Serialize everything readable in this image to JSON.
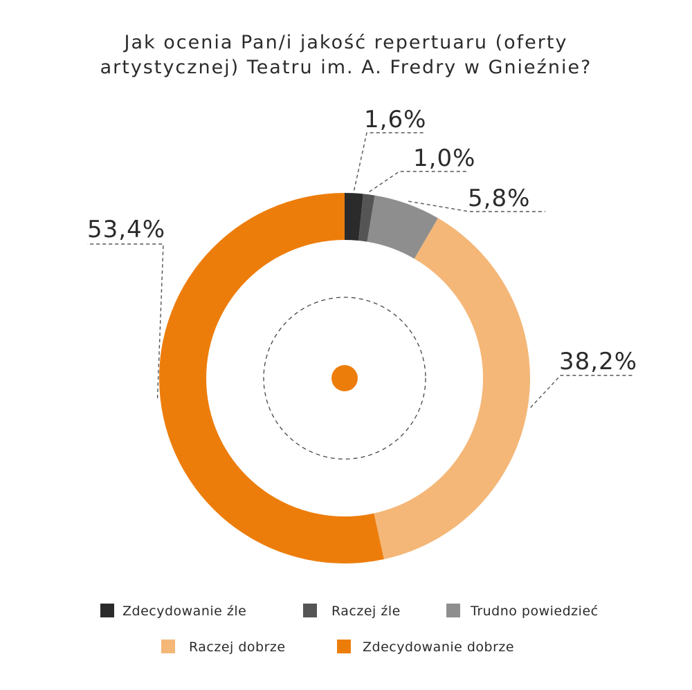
{
  "chart_data": {
    "type": "pie",
    "variant": "donut",
    "title_lines": [
      "Jak ocenia Pan/i jakość repertuaru (oferty",
      "artystycznej) Teatru im. A. Fredry w Gnieźnie?"
    ],
    "slices": [
      {
        "name": "Zdecydowanie źle",
        "value": 1.6,
        "label": "1,6%",
        "color": "#2b2b2b"
      },
      {
        "name": "Raczej źle",
        "value": 1.0,
        "label": "1,0%",
        "color": "#555555"
      },
      {
        "name": "Trudno powiedzieć",
        "value": 5.8,
        "label": "5,8%",
        "color": "#8e8e8e"
      },
      {
        "name": "Raczej dobrze",
        "value": 38.2,
        "label": "38,2%",
        "color": "#f4b778"
      },
      {
        "name": "Zdecydowanie dobrze",
        "value": 53.4,
        "label": "53,4%",
        "color": "#ed7d0b"
      }
    ],
    "start_angle": "top",
    "direction": "clockwise",
    "legend_position": "bottom",
    "center_dot_color": "#ed7d0b"
  }
}
